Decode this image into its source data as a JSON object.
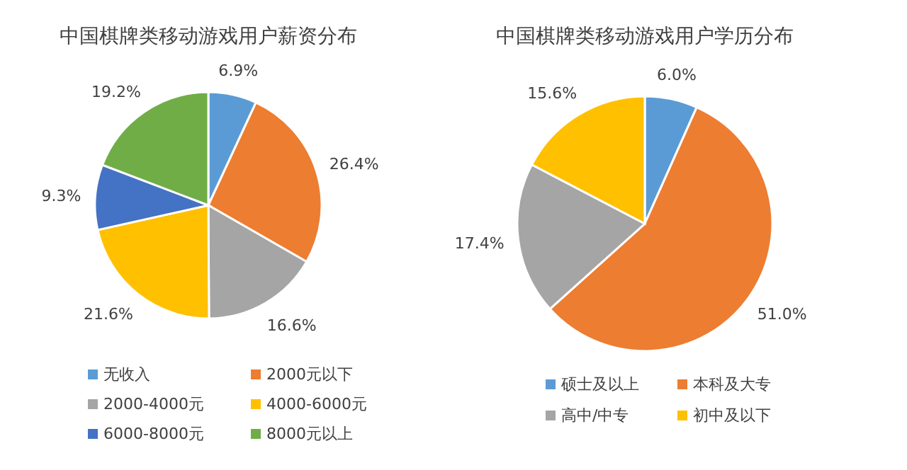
{
  "chart_data": [
    {
      "type": "pie",
      "title": "中国棋牌类移动游戏用户薪资分布",
      "categories": [
        "无收入",
        "2000元以下",
        "2000-4000元",
        "4000-6000元",
        "6000-8000元",
        "8000元以上"
      ],
      "values": [
        6.9,
        26.4,
        16.6,
        21.6,
        9.3,
        19.2
      ],
      "colors": [
        "#5b9bd5",
        "#ed7d31",
        "#a5a5a5",
        "#ffc000",
        "#4472c4",
        "#70ad47"
      ],
      "value_labels": [
        "6.9%",
        "26.4%",
        "16.6%",
        "21.6%",
        "9.3%",
        "19.2%"
      ],
      "legend": "bottom"
    },
    {
      "type": "pie",
      "title": "中国棋牌类移动游戏用户学历分布",
      "categories": [
        "硕士及以上",
        "本科及大专",
        "高中/中专",
        "初中及以下"
      ],
      "values": [
        6.0,
        51.0,
        17.4,
        15.6
      ],
      "colors": [
        "#5b9bd5",
        "#ed7d31",
        "#a5a5a5",
        "#ffc000"
      ],
      "value_labels": [
        "6.0%",
        "51.0%",
        "17.4%",
        "15.6%"
      ],
      "legend": "bottom"
    }
  ]
}
